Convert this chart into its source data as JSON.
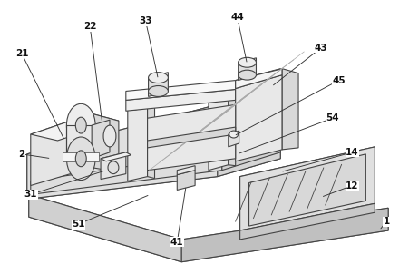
{
  "bg_color": "#ffffff",
  "lc": "#444444",
  "lc2": "#666666",
  "fc_light": "#f0f0f0",
  "fc_mid": "#e0e0e0",
  "fc_dark": "#cccccc",
  "fc_darker": "#b8b8b8",
  "lw": 0.8,
  "figsize": [
    4.52,
    3.02
  ],
  "dpi": 100,
  "label_fs": 7.5
}
